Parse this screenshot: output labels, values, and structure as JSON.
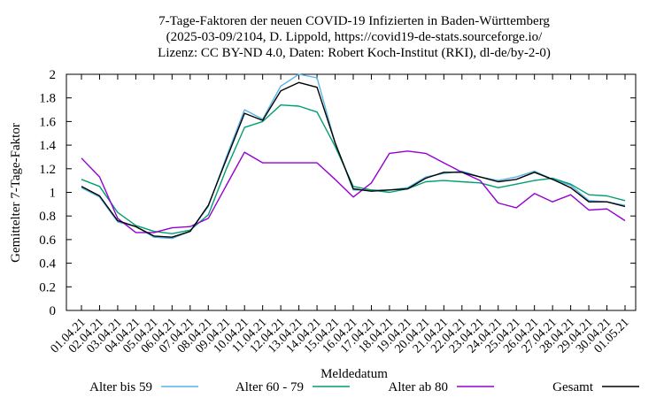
{
  "chart_data": {
    "type": "line",
    "title": [
      "7-Tage-Faktoren der neuen COVID-19 Infizierten in Baden-Württemberg",
      "(2025-03-09/2104, D. Lippold, https://covid19-de-stats.sourceforge.io/",
      "Lizenz: CC BY-ND 4.0, Daten: Robert Koch-Institut (RKI), dl-de/by-2-0)"
    ],
    "xlabel": "Meldedatum",
    "ylabel": "Gemittelter 7-Tage-Faktor",
    "ylim": [
      0,
      2
    ],
    "yticks": [
      "0",
      "0.2",
      "0.4",
      "0.6",
      "0.8",
      "1",
      "1.2",
      "1.4",
      "1.6",
      "1.8",
      "2"
    ],
    "categories": [
      "01.04.21",
      "02.04.21",
      "03.04.21",
      "04.04.21",
      "05.04.21",
      "06.04.21",
      "07.04.21",
      "08.04.21",
      "09.04.21",
      "10.04.21",
      "11.04.21",
      "12.04.21",
      "13.04.21",
      "14.04.21",
      "15.04.21",
      "16.04.21",
      "17.04.21",
      "18.04.21",
      "19.04.21",
      "20.04.21",
      "21.04.21",
      "22.04.21",
      "23.04.21",
      "24.04.21",
      "25.04.21",
      "26.04.21",
      "27.04.21",
      "28.04.21",
      "29.04.21",
      "30.04.21",
      "01.05.21"
    ],
    "grid": false,
    "legend_position": "bottom",
    "series": [
      {
        "name": "Alter bis 59",
        "color": "#56b4e9",
        "values": [
          1.04,
          0.96,
          0.75,
          0.71,
          0.62,
          0.61,
          0.67,
          0.88,
          1.3,
          1.7,
          1.62,
          1.9,
          2.0,
          1.97,
          1.42,
          1.02,
          1.02,
          1.02,
          1.04,
          1.13,
          1.16,
          1.18,
          1.13,
          1.1,
          1.13,
          1.18,
          1.11,
          1.06,
          0.93,
          0.92,
          0.89
        ]
      },
      {
        "name": "Alter 60 - 79",
        "color": "#009e73",
        "values": [
          1.11,
          1.05,
          0.83,
          0.72,
          0.67,
          0.65,
          0.68,
          0.81,
          1.2,
          1.55,
          1.6,
          1.74,
          1.73,
          1.68,
          1.39,
          1.05,
          1.02,
          1.0,
          1.03,
          1.09,
          1.1,
          1.09,
          1.08,
          1.04,
          1.07,
          1.1,
          1.12,
          1.07,
          0.98,
          0.97,
          0.93
        ]
      },
      {
        "name": "Alter ab 80",
        "color": "#9400d3",
        "values": [
          1.29,
          1.13,
          0.78,
          0.66,
          0.66,
          0.7,
          0.71,
          0.78,
          1.06,
          1.34,
          1.25,
          1.25,
          1.25,
          1.25,
          1.11,
          0.96,
          1.08,
          1.33,
          1.35,
          1.33,
          1.25,
          1.17,
          1.1,
          0.91,
          0.87,
          0.99,
          0.92,
          0.98,
          0.85,
          0.86,
          0.76
        ]
      },
      {
        "name": "Gesamt",
        "color": "#000000",
        "values": [
          1.05,
          0.97,
          0.76,
          0.71,
          0.63,
          0.62,
          0.67,
          0.89,
          1.28,
          1.67,
          1.61,
          1.86,
          1.93,
          1.89,
          1.42,
          1.03,
          1.01,
          1.02,
          1.03,
          1.12,
          1.17,
          1.17,
          1.13,
          1.09,
          1.11,
          1.17,
          1.11,
          1.04,
          0.92,
          0.92,
          0.88
        ]
      }
    ]
  }
}
